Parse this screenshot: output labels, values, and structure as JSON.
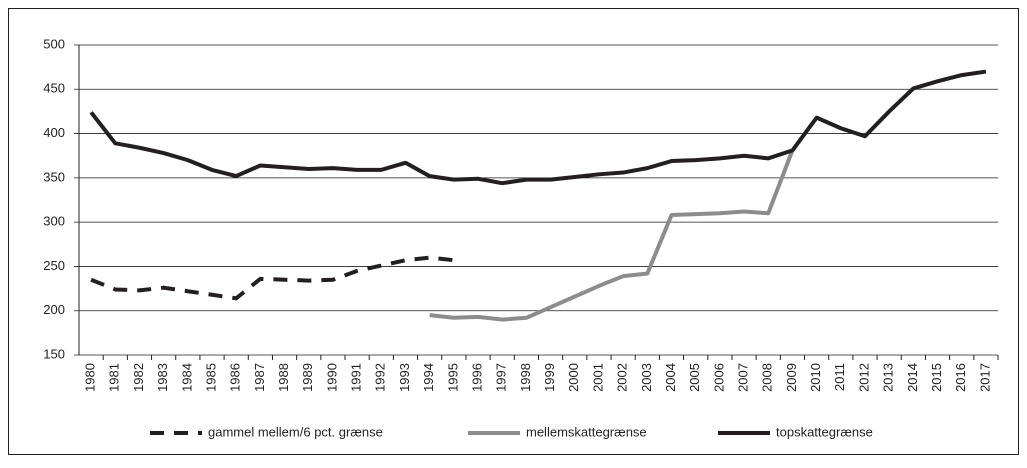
{
  "chart_data": {
    "type": "line",
    "categories": [
      "1980",
      "1981",
      "1982",
      "1983",
      "1984",
      "1985",
      "1986",
      "1987",
      "1988",
      "1989",
      "1990",
      "1991",
      "1992",
      "1993",
      "1994",
      "1995",
      "1996",
      "1997",
      "1998",
      "1999",
      "2000",
      "2001",
      "2002",
      "2003",
      "2004",
      "2005",
      "2006",
      "2007",
      "2008",
      "2009",
      "2010",
      "2011",
      "2012",
      "2013",
      "2014",
      "2015",
      "2016",
      "2017"
    ],
    "series": [
      {
        "name": "gammel mellem/6 pct. grænse",
        "color": "#231f20",
        "dashed": true,
        "values": [
          235,
          224,
          223,
          226,
          222,
          218,
          214,
          236,
          235,
          234,
          235,
          245,
          251,
          257,
          260,
          257,
          null,
          null,
          null,
          null,
          null,
          null,
          null,
          null,
          null,
          null,
          null,
          null,
          null,
          null,
          null,
          null,
          null,
          null,
          null,
          null,
          null,
          null
        ]
      },
      {
        "name": "mellemskattegrænse",
        "color": "#8c8c8c",
        "dashed": false,
        "values": [
          null,
          null,
          null,
          null,
          null,
          null,
          null,
          null,
          null,
          null,
          null,
          null,
          null,
          null,
          195,
          192,
          193,
          190,
          192,
          204,
          216,
          228,
          239,
          242,
          308,
          309,
          310,
          312,
          310,
          381,
          null,
          null,
          null,
          null,
          null,
          null,
          null,
          null
        ]
      },
      {
        "name": "topskattegrænse",
        "color": "#231f20",
        "dashed": false,
        "values": [
          424,
          389,
          384,
          378,
          370,
          359,
          352,
          364,
          362,
          360,
          361,
          359,
          359,
          367,
          352,
          348,
          349,
          344,
          348,
          348,
          351,
          354,
          356,
          361,
          369,
          370,
          372,
          375,
          372,
          381,
          418,
          406,
          397,
          425,
          451,
          459,
          466,
          470
        ]
      }
    ],
    "ylim": [
      150,
      500
    ],
    "yticks": [
      150,
      200,
      250,
      300,
      350,
      400,
      450,
      500
    ],
    "grid": true,
    "legend": "bottom"
  }
}
